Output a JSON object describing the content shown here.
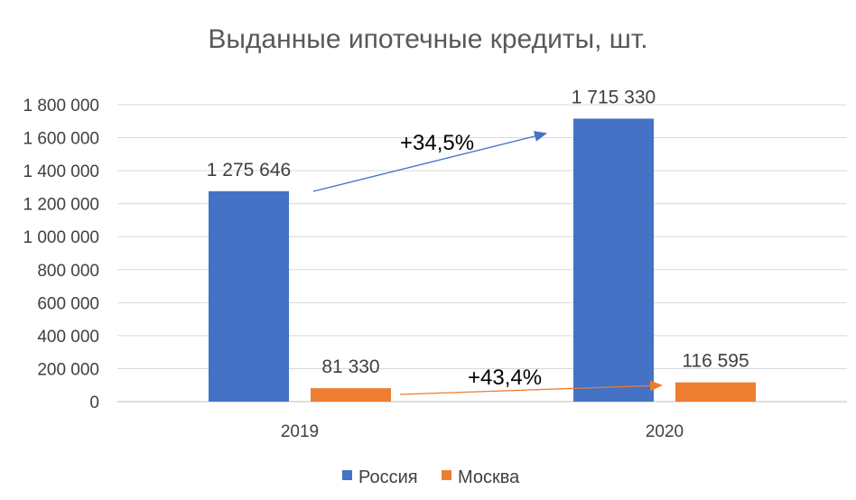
{
  "chart_data": {
    "type": "bar",
    "title": "Выданные ипотечные кредиты, шт.",
    "categories": [
      "2019",
      "2020"
    ],
    "series": [
      {
        "name": "Россия",
        "color": "#4472C4",
        "values": [
          1275646,
          1715330
        ],
        "labels": [
          "1 275 646",
          "1 715 330"
        ]
      },
      {
        "name": "Москва",
        "color": "#ED7D31",
        "values": [
          81330,
          116595
        ],
        "labels": [
          "81 330",
          "116 595"
        ]
      }
    ],
    "ylim": [
      0,
      1800000
    ],
    "yticks": [
      0,
      200000,
      400000,
      600000,
      800000,
      1000000,
      1200000,
      1400000,
      1600000,
      1800000
    ],
    "ytick_labels": [
      "0",
      "200 000",
      "400 000",
      "600 000",
      "800 000",
      "1 000 000",
      "1 200 000",
      "1 400 000",
      "1 600 000",
      "1 800 000"
    ],
    "grid": true,
    "legend_position": "bottom",
    "annotations": [
      {
        "text": "+34,5%",
        "series": "Россия",
        "color": "#4472C4"
      },
      {
        "text": "+43,4%",
        "series": "Москва",
        "color": "#ED7D31"
      }
    ]
  }
}
